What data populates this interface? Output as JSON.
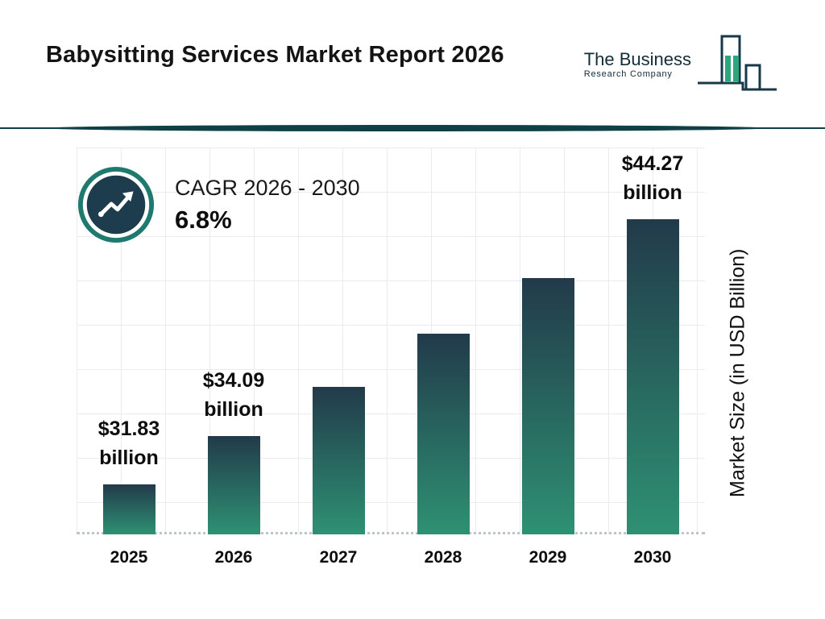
{
  "header": {
    "title": "Babysitting Services Market Report 2026",
    "logo": {
      "name_line1": "The Business",
      "name_line2": "Research Company"
    }
  },
  "cagr": {
    "label": "CAGR 2026 - 2030",
    "value": "6.8%"
  },
  "chart_data": {
    "type": "bar",
    "categories": [
      "2025",
      "2026",
      "2027",
      "2028",
      "2029",
      "2030"
    ],
    "values": [
      31.83,
      34.09,
      36.4,
      38.9,
      41.5,
      44.27
    ],
    "annotations": [
      {
        "index": 0,
        "amount": "$31.83",
        "unit": "billion"
      },
      {
        "index": 1,
        "amount": "$34.09",
        "unit": "billion"
      },
      {
        "index": 5,
        "amount": "$44.27",
        "unit": "billion"
      }
    ],
    "xlabel": "",
    "ylabel": "Market Size (in USD Billion)",
    "ylim_estimate": [
      29.5,
      45.5
    ],
    "grid": true,
    "legend": "none",
    "cagr_2026_2030_pct": 6.8
  },
  "colors": {
    "bar_gradient_top": "#223a4a",
    "bar_gradient_bottom": "#2e9173",
    "divider": "#0e4046",
    "logo_outline": "#16384a",
    "logo_fill": "#2aa87c",
    "icon_ring": "#1e7a6e",
    "icon_fill": "#1d3c4e",
    "grid": "#ebebeb"
  }
}
